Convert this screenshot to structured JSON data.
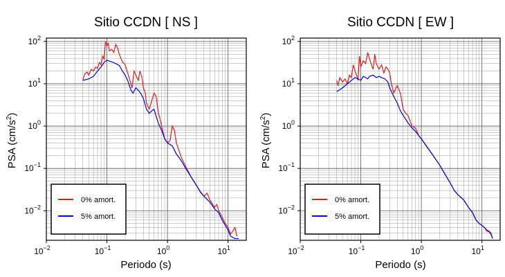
{
  "chart_data": [
    {
      "type": "line",
      "title": "Sitio CCDN [ NS ]",
      "xlabel": "Periodo (s)",
      "ylabel_base": "PSA (cm/s",
      "ylabel_exp": "2",
      "ylabel_close": ")",
      "xscale": "log",
      "yscale": "log",
      "xlim": [
        0.01,
        20
      ],
      "ylim": [
        0.002,
        120
      ],
      "grid": true,
      "legend_position": "bottom-left",
      "x_ticks": [
        {
          "base": "10",
          "exp": "−2"
        },
        {
          "base": "10",
          "exp": "−1"
        },
        {
          "base": "10",
          "exp": "0"
        },
        {
          "base": "10",
          "exp": "1"
        }
      ],
      "y_ticks": [
        {
          "base": "10",
          "exp": "−2"
        },
        {
          "base": "10",
          "exp": "−1"
        },
        {
          "base": "10",
          "exp": "0"
        },
        {
          "base": "10",
          "exp": "1"
        },
        {
          "base": "10",
          "exp": "2"
        }
      ],
      "series": [
        {
          "name": "0% amort.",
          "color": "#e41a1c",
          "points": [
            [
              0.04,
              12
            ],
            [
              0.043,
              17
            ],
            [
              0.047,
              19
            ],
            [
              0.05,
              16
            ],
            [
              0.055,
              22
            ],
            [
              0.06,
              20
            ],
            [
              0.065,
              25
            ],
            [
              0.07,
              23
            ],
            [
              0.075,
              32
            ],
            [
              0.08,
              28
            ],
            [
              0.085,
              45
            ],
            [
              0.09,
              38
            ],
            [
              0.095,
              100
            ],
            [
              0.1,
              80
            ],
            [
              0.105,
              90
            ],
            [
              0.11,
              60
            ],
            [
              0.12,
              65
            ],
            [
              0.13,
              55
            ],
            [
              0.14,
              85
            ],
            [
              0.15,
              70
            ],
            [
              0.16,
              50
            ],
            [
              0.17,
              40
            ],
            [
              0.18,
              33
            ],
            [
              0.2,
              28
            ],
            [
              0.22,
              18
            ],
            [
              0.24,
              12
            ],
            [
              0.26,
              8
            ],
            [
              0.28,
              20
            ],
            [
              0.3,
              16
            ],
            [
              0.33,
              12
            ],
            [
              0.35,
              20
            ],
            [
              0.38,
              14
            ],
            [
              0.4,
              8
            ],
            [
              0.43,
              6
            ],
            [
              0.45,
              3.5
            ],
            [
              0.5,
              2.5
            ],
            [
              0.55,
              4
            ],
            [
              0.6,
              6
            ],
            [
              0.65,
              5
            ],
            [
              0.7,
              2.2
            ],
            [
              0.75,
              1.5
            ],
            [
              0.8,
              1
            ],
            [
              0.9,
              0.5
            ],
            [
              1.0,
              0.4
            ],
            [
              1.1,
              0.45
            ],
            [
              1.2,
              1.0
            ],
            [
              1.3,
              0.8
            ],
            [
              1.4,
              0.4
            ],
            [
              1.5,
              0.3
            ],
            [
              1.7,
              0.18
            ],
            [
              2.0,
              0.11
            ],
            [
              2.5,
              0.06
            ],
            [
              3.0,
              0.04
            ],
            [
              3.5,
              0.027
            ],
            [
              4.0,
              0.022
            ],
            [
              4.5,
              0.026
            ],
            [
              5.0,
              0.018
            ],
            [
              6.0,
              0.012
            ],
            [
              6.5,
              0.014
            ],
            [
              7.0,
              0.01
            ],
            [
              8.0,
              0.007
            ],
            [
              9.0,
              0.005
            ],
            [
              10.0,
              0.004
            ],
            [
              11.0,
              0.0028
            ],
            [
              12.0,
              0.0033
            ],
            [
              13.0,
              0.004
            ],
            [
              14.0,
              0.0025
            ]
          ]
        },
        {
          "name": "5% amort.",
          "color": "#0000e6",
          "points": [
            [
              0.04,
              12
            ],
            [
              0.05,
              13
            ],
            [
              0.06,
              15
            ],
            [
              0.07,
              20
            ],
            [
              0.08,
              25
            ],
            [
              0.09,
              32
            ],
            [
              0.1,
              36
            ],
            [
              0.12,
              33
            ],
            [
              0.14,
              30
            ],
            [
              0.16,
              27
            ],
            [
              0.18,
              20
            ],
            [
              0.2,
              16
            ],
            [
              0.22,
              12
            ],
            [
              0.25,
              7
            ],
            [
              0.27,
              6
            ],
            [
              0.3,
              8
            ],
            [
              0.33,
              7
            ],
            [
              0.36,
              6
            ],
            [
              0.4,
              4.5
            ],
            [
              0.45,
              2.5
            ],
            [
              0.5,
              2.0
            ],
            [
              0.55,
              2.3
            ],
            [
              0.6,
              2.5
            ],
            [
              0.7,
              1.2
            ],
            [
              0.8,
              0.8
            ],
            [
              0.9,
              0.5
            ],
            [
              1.0,
              0.4
            ],
            [
              1.2,
              0.34
            ],
            [
              1.4,
              0.22
            ],
            [
              1.7,
              0.15
            ],
            [
              2.0,
              0.1
            ],
            [
              2.5,
              0.06
            ],
            [
              3.0,
              0.04
            ],
            [
              3.5,
              0.028
            ],
            [
              4.0,
              0.022
            ],
            [
              5.0,
              0.016
            ],
            [
              6.0,
              0.011
            ],
            [
              7.0,
              0.009
            ],
            [
              8.0,
              0.006
            ],
            [
              9.0,
              0.0045
            ],
            [
              10.0,
              0.0035
            ],
            [
              11.0,
              0.0025
            ],
            [
              13.0,
              0.0022
            ],
            [
              15.0,
              0.0022
            ]
          ]
        }
      ]
    },
    {
      "type": "line",
      "title": "Sitio CCDN [ EW ]",
      "xlabel": "Periodo (s)",
      "ylabel_base": "PSA (cm/s",
      "ylabel_exp": "2",
      "ylabel_close": ")",
      "xscale": "log",
      "yscale": "log",
      "xlim": [
        0.01,
        20
      ],
      "ylim": [
        0.002,
        120
      ],
      "grid": true,
      "legend_position": "bottom-left",
      "x_ticks": [
        {
          "base": "10",
          "exp": "−2"
        },
        {
          "base": "10",
          "exp": "−1"
        },
        {
          "base": "10",
          "exp": "0"
        },
        {
          "base": "10",
          "exp": "1"
        }
      ],
      "y_ticks": [
        {
          "base": "10",
          "exp": "−2"
        },
        {
          "base": "10",
          "exp": "−1"
        },
        {
          "base": "10",
          "exp": "0"
        },
        {
          "base": "10",
          "exp": "1"
        },
        {
          "base": "10",
          "exp": "2"
        }
      ],
      "series": [
        {
          "name": "0% amort.",
          "color": "#e41a1c",
          "points": [
            [
              0.04,
              12
            ],
            [
              0.042,
              9
            ],
            [
              0.045,
              14
            ],
            [
              0.05,
              11
            ],
            [
              0.055,
              13
            ],
            [
              0.06,
              10
            ],
            [
              0.065,
              16
            ],
            [
              0.07,
              14
            ],
            [
              0.075,
              28
            ],
            [
              0.08,
              20
            ],
            [
              0.085,
              16
            ],
            [
              0.09,
              12
            ],
            [
              0.095,
              45
            ],
            [
              0.1,
              25
            ],
            [
              0.11,
              35
            ],
            [
              0.12,
              30
            ],
            [
              0.13,
              55
            ],
            [
              0.14,
              38
            ],
            [
              0.15,
              28
            ],
            [
              0.16,
              22
            ],
            [
              0.17,
              50
            ],
            [
              0.18,
              30
            ],
            [
              0.2,
              22
            ],
            [
              0.22,
              28
            ],
            [
              0.24,
              18
            ],
            [
              0.26,
              25
            ],
            [
              0.28,
              22
            ],
            [
              0.3,
              18
            ],
            [
              0.32,
              10
            ],
            [
              0.35,
              6
            ],
            [
              0.38,
              8
            ],
            [
              0.4,
              9
            ],
            [
              0.43,
              7
            ],
            [
              0.45,
              6
            ],
            [
              0.5,
              2.5
            ],
            [
              0.55,
              2.0
            ],
            [
              0.6,
              1.8
            ],
            [
              0.7,
              1.0
            ],
            [
              0.8,
              0.9
            ],
            [
              0.9,
              0.6
            ],
            [
              1.0,
              0.5
            ],
            [
              1.2,
              0.35
            ],
            [
              1.5,
              0.22
            ],
            [
              2.0,
              0.12
            ],
            [
              2.5,
              0.07
            ],
            [
              3.0,
              0.045
            ],
            [
              3.5,
              0.03
            ],
            [
              4.0,
              0.024
            ],
            [
              5.0,
              0.018
            ],
            [
              6.0,
              0.012
            ],
            [
              7.0,
              0.009
            ],
            [
              8.0,
              0.006
            ],
            [
              9.0,
              0.005
            ],
            [
              10.0,
              0.0045
            ],
            [
              11.0,
              0.004
            ],
            [
              12.0,
              0.0033
            ],
            [
              13.0,
              0.0032
            ],
            [
              14.0,
              0.0028
            ],
            [
              15.0,
              0.0022
            ]
          ]
        },
        {
          "name": "5% amort.",
          "color": "#0000e6",
          "points": [
            [
              0.04,
              6.5
            ],
            [
              0.05,
              8
            ],
            [
              0.06,
              10
            ],
            [
              0.07,
              12
            ],
            [
              0.08,
              14
            ],
            [
              0.09,
              13
            ],
            [
              0.1,
              12
            ],
            [
              0.11,
              15
            ],
            [
              0.12,
              14
            ],
            [
              0.13,
              13
            ],
            [
              0.14,
              15
            ],
            [
              0.16,
              16
            ],
            [
              0.18,
              14
            ],
            [
              0.2,
              15
            ],
            [
              0.22,
              14
            ],
            [
              0.25,
              13
            ],
            [
              0.28,
              11
            ],
            [
              0.3,
              8
            ],
            [
              0.35,
              5
            ],
            [
              0.4,
              3.5
            ],
            [
              0.45,
              2.3
            ],
            [
              0.5,
              1.8
            ],
            [
              0.6,
              1.2
            ],
            [
              0.7,
              0.9
            ],
            [
              0.8,
              0.75
            ],
            [
              0.9,
              0.6
            ],
            [
              1.0,
              0.5
            ],
            [
              1.2,
              0.34
            ],
            [
              1.5,
              0.22
            ],
            [
              2.0,
              0.12
            ],
            [
              2.5,
              0.07
            ],
            [
              3.0,
              0.045
            ],
            [
              3.5,
              0.03
            ],
            [
              4.0,
              0.024
            ],
            [
              5.0,
              0.018
            ],
            [
              6.0,
              0.012
            ],
            [
              7.0,
              0.009
            ],
            [
              8.0,
              0.006
            ],
            [
              9.0,
              0.005
            ],
            [
              10.0,
              0.0045
            ],
            [
              11.0,
              0.004
            ],
            [
              12.0,
              0.0035
            ],
            [
              13.0,
              0.0033
            ],
            [
              14.0,
              0.003
            ],
            [
              15.0,
              0.0022
            ]
          ]
        }
      ]
    }
  ]
}
